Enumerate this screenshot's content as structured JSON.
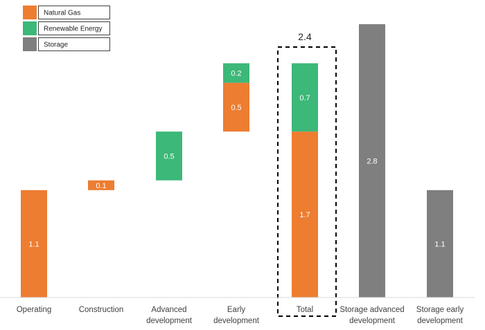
{
  "chart_data": {
    "type": "bar",
    "subtype": "waterfall",
    "legend": [
      {
        "name": "Natural Gas",
        "color": "#ED7D31"
      },
      {
        "name": "Renewable Energy",
        "color": "#3CB878"
      },
      {
        "name": "Storage",
        "color": "#7F7F7F"
      }
    ],
    "categories": [
      [
        "Operating"
      ],
      [
        "Construction"
      ],
      [
        "Advanced",
        "development"
      ],
      [
        "Early",
        "development"
      ],
      [
        "Total"
      ],
      [
        "Storage advanced",
        "development"
      ],
      [
        "Storage early",
        "development"
      ]
    ],
    "segments": [
      {
        "category": 0,
        "series": "Natural Gas",
        "base": 0,
        "value": 1.1,
        "label": "1.1"
      },
      {
        "category": 1,
        "series": "Natural Gas",
        "base": 1.1,
        "value": 0.1,
        "label": "0.1"
      },
      {
        "category": 2,
        "series": "Renewable Energy",
        "base": 1.2,
        "value": 0.5,
        "label": "0.5"
      },
      {
        "category": 3,
        "series": "Natural Gas",
        "base": 1.7,
        "value": 0.5,
        "label": "0.5"
      },
      {
        "category": 3,
        "series": "Renewable Energy",
        "base": 2.2,
        "value": 0.2,
        "label": "0.2"
      },
      {
        "category": 4,
        "series": "Natural Gas",
        "base": 0,
        "value": 1.7,
        "label": "1.7"
      },
      {
        "category": 4,
        "series": "Renewable Energy",
        "base": 1.7,
        "value": 0.7,
        "label": "0.7"
      },
      {
        "category": 5,
        "series": "Storage",
        "base": 0,
        "value": 2.8,
        "label": "2.8"
      },
      {
        "category": 6,
        "series": "Storage",
        "base": 0,
        "value": 1.1,
        "label": "1.1"
      }
    ],
    "annotations": [
      {
        "category": 4,
        "text": "2.4",
        "style": "dashed-box"
      }
    ],
    "ylim": [
      0,
      2.8
    ],
    "title": "",
    "xlabel": "",
    "ylabel": ""
  }
}
